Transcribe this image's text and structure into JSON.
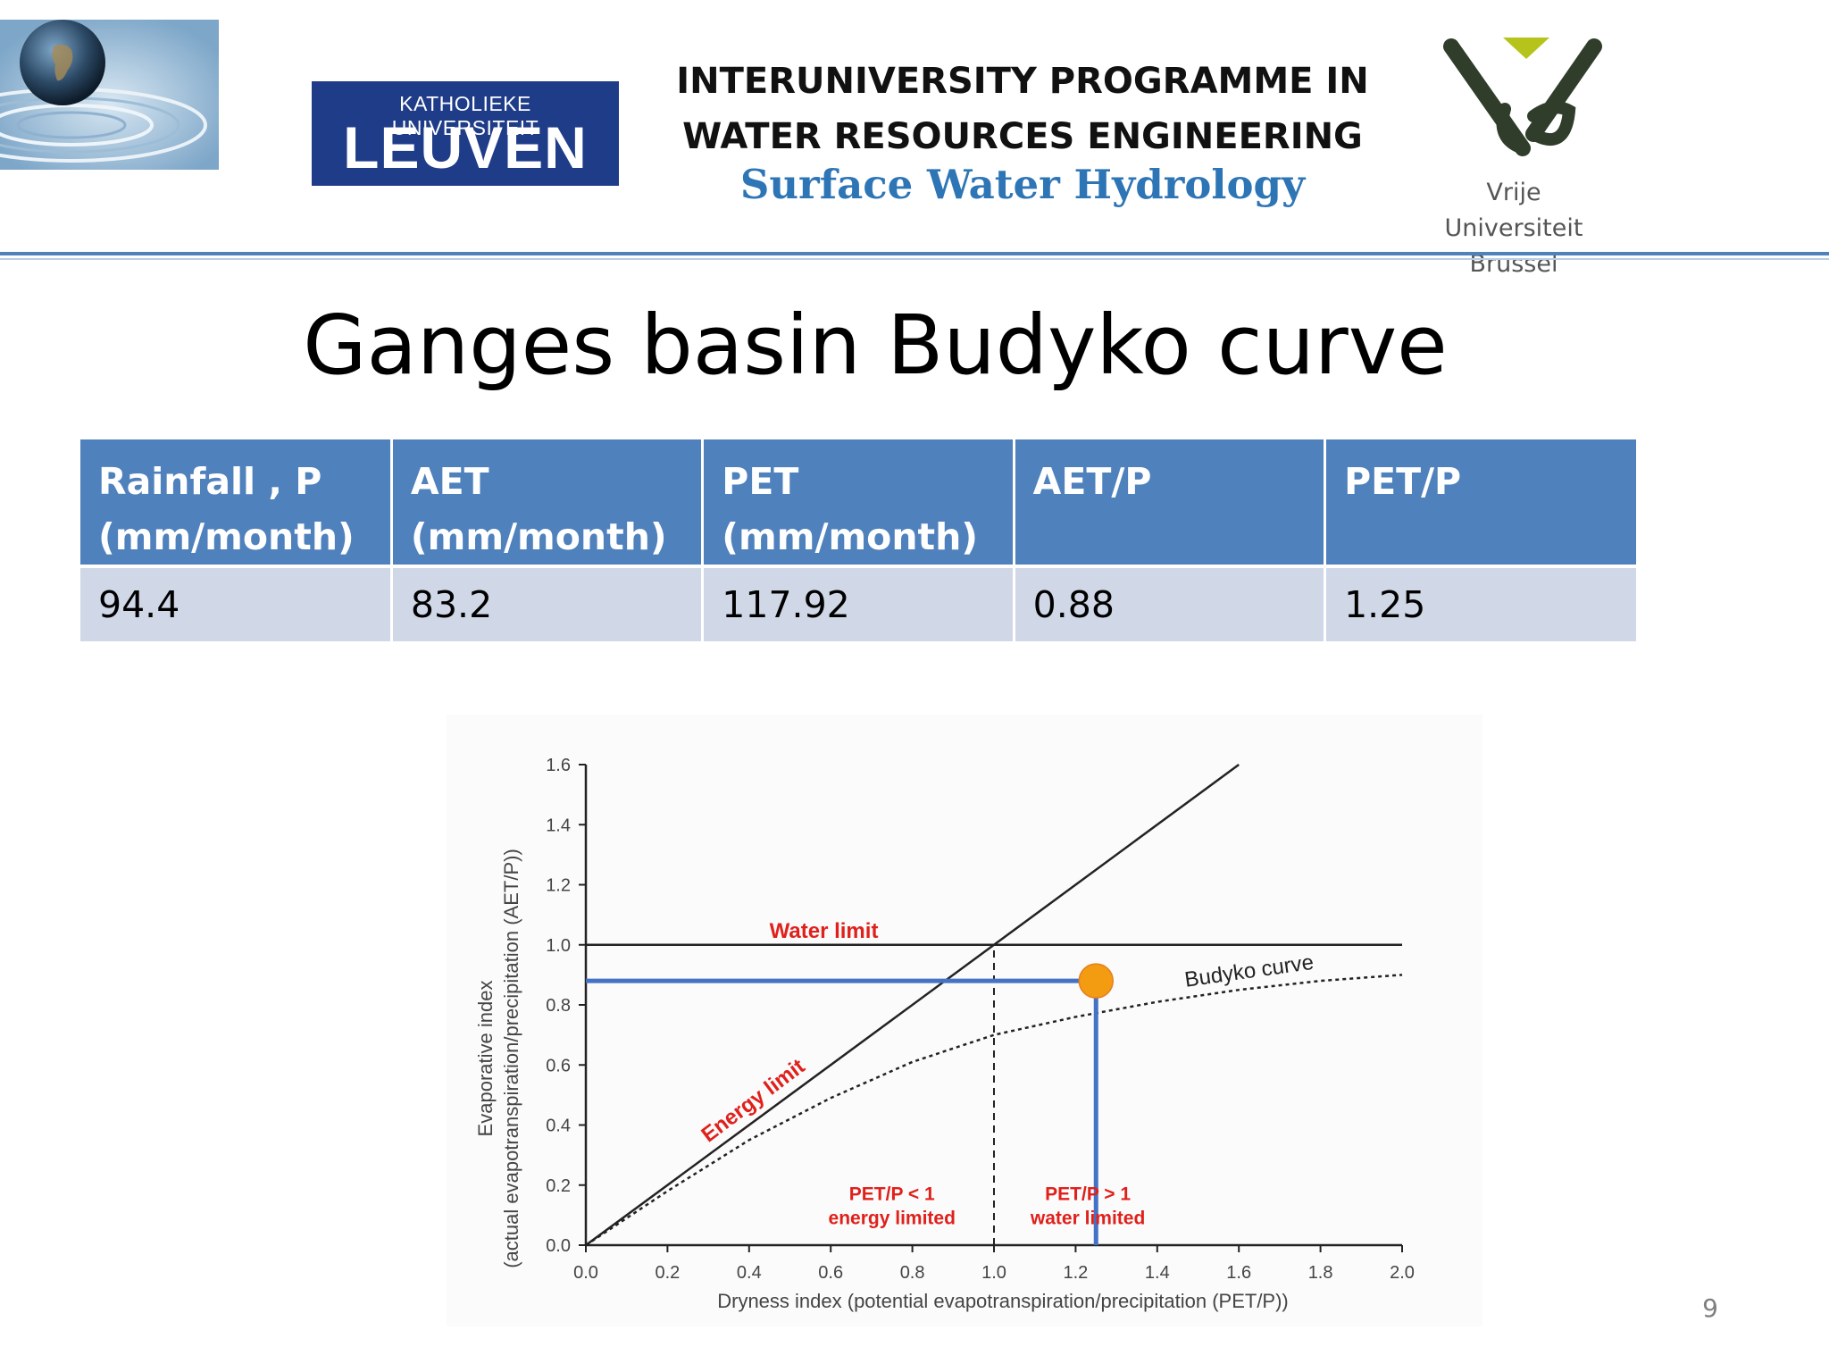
{
  "header": {
    "programme_line1": "INTERUNIVERSITY PROGRAMME IN",
    "programme_line2": "WATER RESOURCES ENGINEERING",
    "course": "Surface Water Hydrology",
    "kul_logo_small": "KATHOLIEKE UNIVERSITEIT",
    "kul_logo_big": "LEUVEN",
    "vub_line1": "Vrije Universiteit",
    "vub_line2": "Brussel"
  },
  "slide": {
    "title": "Ganges basin Budyko curve",
    "page_number": "9"
  },
  "table": {
    "headers": [
      [
        "Rainfall , P",
        "(mm/month)"
      ],
      [
        "AET",
        "(mm/month)"
      ],
      [
        "PET",
        "(mm/month)"
      ],
      [
        "AET/P",
        ""
      ],
      [
        "PET/P",
        ""
      ]
    ],
    "row": [
      "94.4",
      "83.2",
      "117.92",
      "0.88",
      "1.25"
    ]
  },
  "chart_data": {
    "type": "line",
    "xlabel": "Dryness index (potential evapotranspiration/precipitation (PET/P))",
    "ylabel_line1": "Evaporative index",
    "ylabel_line2": "(actual evapotranspiration/precipitation (AET/P))",
    "xlim": [
      0,
      2.0
    ],
    "ylim": [
      0,
      1.6
    ],
    "x_ticks": [
      "0.0",
      "0.2",
      "0.4",
      "0.6",
      "0.8",
      "1.0",
      "1.2",
      "1.4",
      "1.6",
      "1.8",
      "2.0"
    ],
    "y_ticks": [
      "0.0",
      "0.2",
      "0.4",
      "0.6",
      "0.8",
      "1.0",
      "1.2",
      "1.4",
      "1.6"
    ],
    "series": [
      {
        "name": "Energy limit",
        "x": [
          0,
          1.6
        ],
        "y": [
          0,
          1.6
        ],
        "style": "solid"
      },
      {
        "name": "Water limit",
        "x": [
          0,
          2.0
        ],
        "y": [
          1.0,
          1.0
        ],
        "style": "solid"
      },
      {
        "name": "Budyko curve",
        "x": [
          0,
          0.2,
          0.4,
          0.6,
          0.8,
          1.0,
          1.2,
          1.4,
          1.6,
          1.8,
          2.0
        ],
        "y": [
          0,
          0.18,
          0.35,
          0.49,
          0.61,
          0.7,
          0.76,
          0.81,
          0.85,
          0.88,
          0.9
        ],
        "style": "dotted"
      }
    ],
    "threshold_x": 1.0,
    "basin_point": {
      "x": 1.25,
      "y": 0.88
    },
    "annotations": {
      "water_limit": "Water limit",
      "energy_limit": "Energy limit",
      "budyko_curve": "Budyko curve",
      "left_region_line1": "PET/P < 1",
      "left_region_line2": "energy limited",
      "right_region_line1": "PET/P > 1",
      "right_region_line2": "water limited"
    },
    "colors": {
      "axes": "#222222",
      "annotation": "#e0201b",
      "marker_line": "#4472c4",
      "marker_fill": "#f39c12"
    }
  }
}
